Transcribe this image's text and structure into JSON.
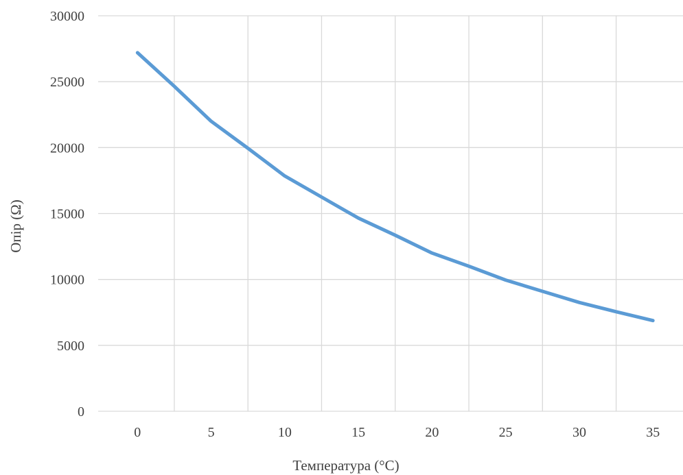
{
  "chart_data": {
    "type": "line",
    "title": "",
    "xlabel": "Температура (°C)",
    "ylabel": "Опір (Ω)",
    "xlim": [
      -2.67,
      37.04
    ],
    "ylim": [
      0,
      30000
    ],
    "x_ticks": [
      0,
      5,
      10,
      15,
      20,
      25,
      30,
      35
    ],
    "y_ticks": [
      0,
      5000,
      10000,
      15000,
      20000,
      25000,
      30000
    ],
    "x_tick_labels": [
      "0",
      "5",
      "10",
      "15",
      "20",
      "25",
      "30",
      "35"
    ],
    "y_tick_labels": [
      "0",
      "5000",
      "10000",
      "15000",
      "20000",
      "25000",
      "30000"
    ],
    "grid": true,
    "legend": "none",
    "colors": {
      "line": "#5b9bd5",
      "grid": "#d9d9d9",
      "text": "#404040"
    },
    "series": [
      {
        "x": [
          0,
          2.5,
          5,
          7.5,
          10,
          12.5,
          15,
          17.5,
          20,
          22.5,
          25,
          27.5,
          30,
          32.5,
          35
        ],
        "values": [
          27200,
          24650,
          22000,
          19950,
          17850,
          16250,
          14650,
          13350,
          12000,
          11000,
          9950,
          9100,
          8250,
          7550,
          6880
        ]
      }
    ]
  }
}
